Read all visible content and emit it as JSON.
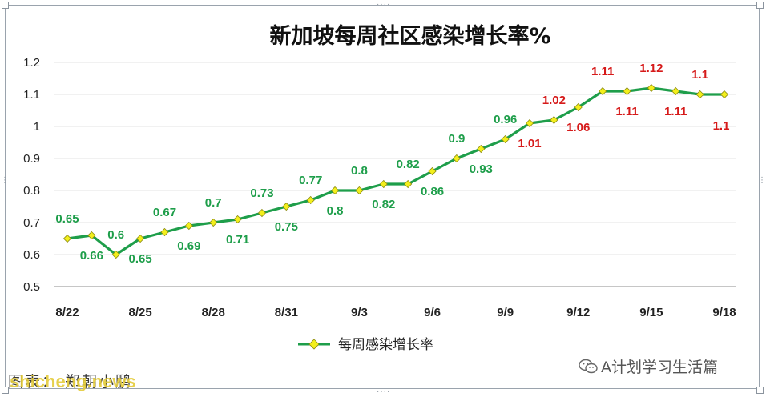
{
  "chart_data": {
    "type": "line",
    "title": "新加坡每周社区感染增长率%",
    "legend": {
      "label": "每周感染增长率",
      "placement": "bottom"
    },
    "series_color": "#1e9e4a",
    "marker_color": "#f3ef1c",
    "ylim": [
      0.5,
      1.2
    ],
    "yticks": [
      "0.5",
      "0.6",
      "0.7",
      "0.8",
      "0.9",
      "1",
      "1.1",
      "1.2"
    ],
    "xticks": [
      "8/22",
      "8/25",
      "8/28",
      "8/31",
      "9/3",
      "9/6",
      "9/9",
      "9/12",
      "9/15",
      "9/18"
    ],
    "grid": true,
    "x": [
      "8/22",
      "8/23",
      "8/24",
      "8/25",
      "8/26",
      "8/27",
      "8/28",
      "8/29",
      "8/30",
      "8/31",
      "9/1",
      "9/2",
      "9/3",
      "9/4",
      "9/5",
      "9/6",
      "9/7",
      "9/8",
      "9/9",
      "9/10",
      "9/11",
      "9/12",
      "9/13",
      "9/14",
      "9/15",
      "9/16",
      "9/17",
      "9/18"
    ],
    "values": [
      0.65,
      0.66,
      0.6,
      0.65,
      0.67,
      0.69,
      0.7,
      0.71,
      0.73,
      0.75,
      0.77,
      0.8,
      0.8,
      0.82,
      0.82,
      0.86,
      0.9,
      0.93,
      0.96,
      1.01,
      1.02,
      1.06,
      1.11,
      1.11,
      1.12,
      1.11,
      1.1,
      1.1
    ],
    "data_labels": [
      "0.65",
      "0.66",
      "0.6",
      "0.65",
      "0.67",
      "0.69",
      "0.7",
      "0.71",
      "0.73",
      "0.75",
      "0.77",
      "0.8",
      "0.8",
      "0.82",
      "0.82",
      "0.86",
      "0.9",
      "0.93",
      "0.96",
      "1.01",
      "1.02",
      "1.06",
      "1.11",
      "1.11",
      "1.12",
      "1.11",
      "1.1",
      "1.1"
    ],
    "label_colors": {
      "normal": "#1e9e4a",
      "high": "#d61a1a"
    }
  },
  "watermarks": {
    "left_text": "图表：   郑朝小鹏",
    "left_overlay": "shicheng.news",
    "right_text": "A计划学习生活篇"
  }
}
